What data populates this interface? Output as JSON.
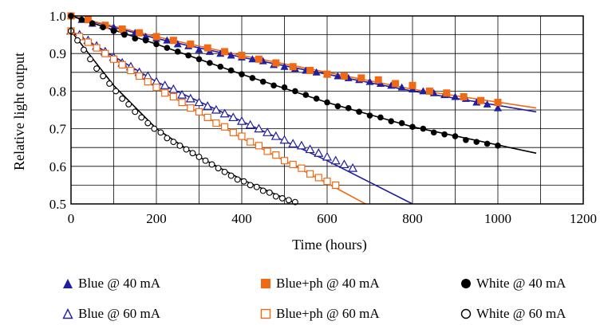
{
  "chart_data": {
    "type": "scatter",
    "xlabel": "Time (hours)",
    "ylabel": "Relative light output",
    "xlim": [
      0,
      1200
    ],
    "ylim": [
      0.5,
      1.0
    ],
    "xticks": [
      "0",
      "200",
      "400",
      "600",
      "800",
      "1000",
      "1200"
    ],
    "yticks": [
      "0.5",
      "0.6",
      "0.7",
      "0.8",
      "0.9",
      "1.0"
    ],
    "grid": true,
    "legend_position": "bottom",
    "series": [
      {
        "name": "Blue @ 40 mA",
        "color": "#1f1fa0",
        "marker": "filled-triangle",
        "x": [
          0,
          25,
          50,
          75,
          100,
          125,
          150,
          175,
          200,
          225,
          250,
          275,
          300,
          325,
          350,
          375,
          400,
          425,
          450,
          475,
          500,
          525,
          550,
          575,
          600,
          625,
          650,
          675,
          700,
          725,
          750,
          775,
          800,
          825,
          850,
          875,
          900,
          925,
          950,
          975,
          1000
        ],
        "y": [
          1.0,
          0.99,
          0.98,
          0.975,
          0.97,
          0.96,
          0.955,
          0.945,
          0.94,
          0.935,
          0.925,
          0.92,
          0.91,
          0.905,
          0.9,
          0.895,
          0.89,
          0.885,
          0.88,
          0.87,
          0.865,
          0.86,
          0.855,
          0.85,
          0.845,
          0.84,
          0.835,
          0.83,
          0.825,
          0.82,
          0.815,
          0.81,
          0.805,
          0.8,
          0.795,
          0.79,
          0.785,
          0.78,
          0.77,
          0.765,
          0.755
        ],
        "fit": {
          "x": [
            0,
            200,
            400,
            600,
            800,
            1090
          ],
          "y": [
            1.0,
            0.94,
            0.89,
            0.845,
            0.8,
            0.745
          ]
        }
      },
      {
        "name": "Blue @ 60 mA",
        "color": "#1f1fa0",
        "marker": "open-triangle",
        "x": [
          0,
          20,
          40,
          60,
          80,
          100,
          120,
          140,
          160,
          180,
          200,
          220,
          240,
          260,
          280,
          300,
          320,
          340,
          360,
          380,
          400,
          420,
          440,
          460,
          480,
          500,
          520,
          540,
          560,
          580,
          600,
          620,
          640,
          660
        ],
        "y": [
          0.96,
          0.95,
          0.935,
          0.92,
          0.905,
          0.89,
          0.875,
          0.865,
          0.85,
          0.84,
          0.825,
          0.815,
          0.805,
          0.79,
          0.78,
          0.77,
          0.76,
          0.75,
          0.74,
          0.73,
          0.72,
          0.71,
          0.7,
          0.69,
          0.68,
          0.67,
          0.66,
          0.655,
          0.645,
          0.635,
          0.625,
          0.615,
          0.605,
          0.595
        ],
        "fit": {
          "x": [
            0,
            200,
            400,
            600,
            800
          ],
          "y": [
            0.96,
            0.825,
            0.72,
            0.615,
            0.5
          ]
        }
      },
      {
        "name": "Blue+ph @ 40 mA",
        "color": "#f06a16",
        "marker": "filled-square",
        "x": [
          0,
          40,
          80,
          120,
          160,
          200,
          240,
          280,
          320,
          360,
          400,
          440,
          480,
          520,
          560,
          600,
          640,
          680,
          720,
          760,
          800,
          840,
          880,
          920,
          960,
          1000
        ],
        "y": [
          1.0,
          0.99,
          0.975,
          0.965,
          0.955,
          0.945,
          0.935,
          0.925,
          0.915,
          0.905,
          0.895,
          0.885,
          0.875,
          0.865,
          0.855,
          0.845,
          0.84,
          0.835,
          0.83,
          0.82,
          0.815,
          0.8,
          0.795,
          0.785,
          0.775,
          0.77
        ],
        "fit": {
          "x": [
            0,
            200,
            400,
            600,
            800,
            1090
          ],
          "y": [
            1.0,
            0.945,
            0.895,
            0.85,
            0.805,
            0.755
          ]
        }
      },
      {
        "name": "Blue+ph @ 60 mA",
        "color": "#f06a16",
        "marker": "open-square",
        "x": [
          0,
          20,
          40,
          60,
          80,
          100,
          120,
          140,
          160,
          180,
          200,
          220,
          240,
          260,
          280,
          300,
          320,
          340,
          360,
          380,
          400,
          420,
          440,
          460,
          480,
          500,
          520,
          540,
          560,
          580,
          600,
          620
        ],
        "y": [
          0.96,
          0.945,
          0.93,
          0.915,
          0.9,
          0.885,
          0.87,
          0.855,
          0.84,
          0.825,
          0.81,
          0.795,
          0.785,
          0.77,
          0.755,
          0.745,
          0.73,
          0.715,
          0.705,
          0.69,
          0.68,
          0.665,
          0.655,
          0.64,
          0.63,
          0.615,
          0.605,
          0.595,
          0.58,
          0.57,
          0.56,
          0.55
        ],
        "fit": {
          "x": [
            0,
            200,
            400,
            600,
            690
          ],
          "y": [
            0.96,
            0.81,
            0.675,
            0.555,
            0.5
          ]
        }
      },
      {
        "name": "White @ 40 mA",
        "color": "#000000",
        "marker": "filled-circle",
        "x": [
          0,
          25,
          50,
          75,
          100,
          125,
          150,
          175,
          200,
          225,
          250,
          275,
          300,
          325,
          350,
          375,
          400,
          425,
          450,
          475,
          500,
          525,
          550,
          575,
          600,
          625,
          650,
          675,
          700,
          725,
          750,
          775,
          800,
          825,
          850,
          875,
          900,
          925,
          950,
          975,
          1000
        ],
        "y": [
          1.0,
          0.99,
          0.98,
          0.97,
          0.96,
          0.95,
          0.94,
          0.935,
          0.925,
          0.915,
          0.905,
          0.895,
          0.885,
          0.875,
          0.865,
          0.855,
          0.845,
          0.835,
          0.825,
          0.815,
          0.81,
          0.8,
          0.79,
          0.78,
          0.77,
          0.76,
          0.755,
          0.745,
          0.735,
          0.73,
          0.72,
          0.715,
          0.705,
          0.7,
          0.69,
          0.685,
          0.68,
          0.67,
          0.665,
          0.66,
          0.655
        ],
        "fit": {
          "x": [
            0,
            200,
            400,
            600,
            800,
            1090
          ],
          "y": [
            1.0,
            0.925,
            0.845,
            0.77,
            0.705,
            0.635
          ]
        }
      },
      {
        "name": "White @ 60 mA",
        "color": "#000000",
        "marker": "open-circle",
        "x": [
          0,
          15,
          30,
          45,
          60,
          75,
          90,
          105,
          120,
          135,
          150,
          165,
          180,
          195,
          210,
          225,
          240,
          255,
          270,
          285,
          300,
          315,
          330,
          345,
          360,
          375,
          390,
          405,
          420,
          435,
          450,
          465,
          480,
          495,
          510,
          525
        ],
        "y": [
          0.96,
          0.935,
          0.91,
          0.885,
          0.86,
          0.84,
          0.82,
          0.8,
          0.78,
          0.765,
          0.745,
          0.73,
          0.715,
          0.7,
          0.69,
          0.675,
          0.665,
          0.655,
          0.645,
          0.635,
          0.625,
          0.615,
          0.605,
          0.595,
          0.585,
          0.575,
          0.565,
          0.56,
          0.55,
          0.545,
          0.535,
          0.53,
          0.52,
          0.515,
          0.51,
          0.505
        ],
        "fit": {
          "x": [
            0,
            100,
            200,
            300,
            400,
            530
          ],
          "y": [
            0.96,
            0.815,
            0.7,
            0.625,
            0.565,
            0.5
          ]
        }
      }
    ]
  },
  "legend": [
    {
      "label": "Blue @ 40 mA",
      "marker": "filled-triangle",
      "color": "#1f1fa0"
    },
    {
      "label": "Blue+ph @ 40 mA",
      "marker": "filled-square",
      "color": "#f06a16"
    },
    {
      "label": "White @ 40 mA",
      "marker": "filled-circle",
      "color": "#000000"
    },
    {
      "label": "Blue @ 60 mA",
      "marker": "open-triangle",
      "color": "#1f1fa0"
    },
    {
      "label": "Blue+ph @ 60 mA",
      "marker": "open-square",
      "color": "#f06a16"
    },
    {
      "label": "White @ 60 mA",
      "marker": "open-circle",
      "color": "#000000"
    }
  ]
}
